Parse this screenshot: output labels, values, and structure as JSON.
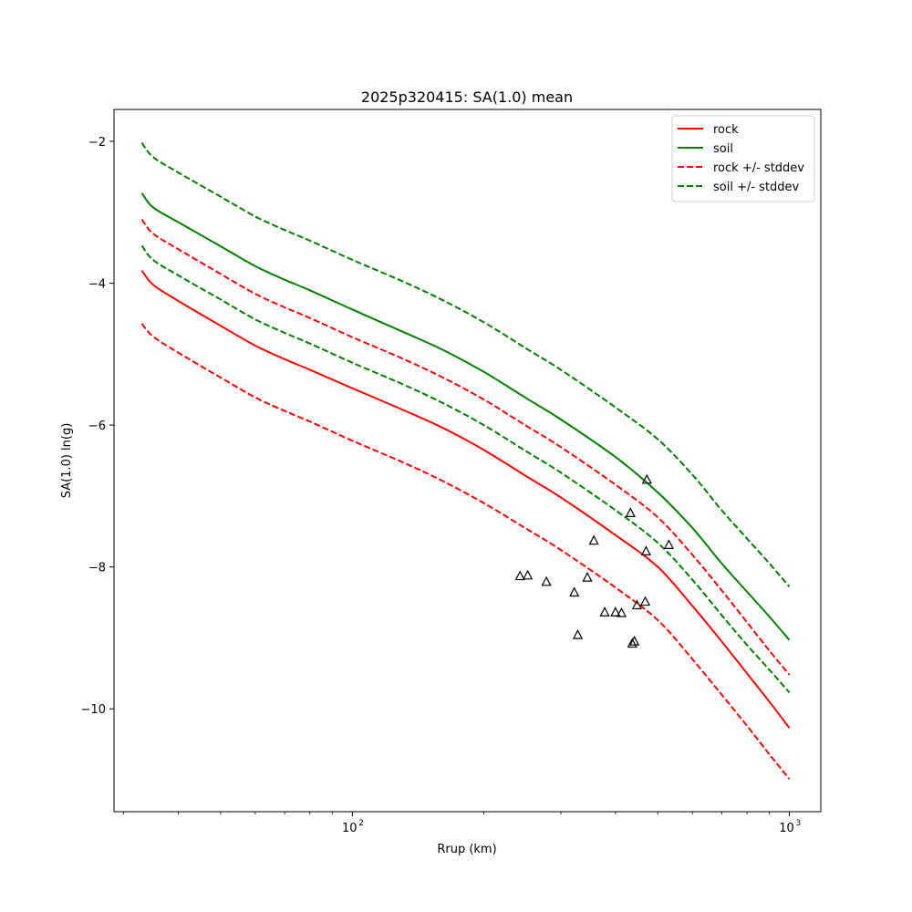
{
  "chart_data": {
    "type": "line",
    "title": "2025p320415: SA(1.0) mean",
    "xlabel": "Rrup (km)",
    "ylabel": "SA(1.0) ln(g)",
    "xscale": "log",
    "xlim": [
      28.5,
      1180
    ],
    "ylim": [
      -11.45,
      -1.55
    ],
    "x_ticks": [
      {
        "value": 100,
        "base": "10",
        "exp": "2"
      },
      {
        "value": 1000,
        "base": "10",
        "exp": "3"
      }
    ],
    "y_ticks": [
      {
        "value": -2,
        "label": "−2"
      },
      {
        "value": -4,
        "label": "−4"
      },
      {
        "value": -6,
        "label": "−6"
      },
      {
        "value": -8,
        "label": "−8"
      },
      {
        "value": -10,
        "label": "−10"
      }
    ],
    "legend_position": "upper-right",
    "legend": [
      {
        "label": "rock",
        "color": "#ff0000",
        "style": "solid"
      },
      {
        "label": "soil",
        "color": "#008000",
        "style": "solid"
      },
      {
        "label": "rock +/- stddev",
        "color": "#ff0000",
        "style": "dashed"
      },
      {
        "label": "soil +/- stddev",
        "color": "#008000",
        "style": "dashed"
      }
    ],
    "series": [
      {
        "key": "rock",
        "color": "#ff0000",
        "style": "solid",
        "x": [
          33,
          35,
          40,
          50,
          60,
          70,
          80,
          100,
          130,
          160,
          200,
          250,
          300,
          400,
          500,
          600,
          700,
          800,
          900,
          1000
        ],
        "y": [
          -3.82,
          -4.02,
          -4.25,
          -4.6,
          -4.88,
          -5.07,
          -5.22,
          -5.48,
          -5.78,
          -6.03,
          -6.35,
          -6.72,
          -7.02,
          -7.55,
          -8.0,
          -8.55,
          -9.05,
          -9.5,
          -9.9,
          -10.27
        ]
      },
      {
        "key": "soil",
        "color": "#008000",
        "style": "solid",
        "x": [
          33,
          35,
          40,
          50,
          60,
          70,
          80,
          100,
          130,
          160,
          200,
          250,
          300,
          400,
          500,
          600,
          700,
          800,
          900,
          1000
        ],
        "y": [
          -2.73,
          -2.93,
          -3.14,
          -3.48,
          -3.76,
          -3.95,
          -4.1,
          -4.37,
          -4.68,
          -4.93,
          -5.25,
          -5.62,
          -5.92,
          -6.45,
          -6.95,
          -7.45,
          -7.95,
          -8.35,
          -8.7,
          -9.03
        ]
      },
      {
        "key": "rock_plus",
        "color": "#ff0000",
        "style": "dashed",
        "x": [
          33,
          35,
          40,
          50,
          60,
          70,
          80,
          100,
          130,
          160,
          200,
          250,
          300,
          400,
          500,
          600,
          700,
          800,
          900,
          1000
        ],
        "y": [
          -3.1,
          -3.3,
          -3.52,
          -3.87,
          -4.15,
          -4.34,
          -4.49,
          -4.76,
          -5.06,
          -5.32,
          -5.64,
          -6.01,
          -6.31,
          -6.84,
          -7.3,
          -7.83,
          -8.33,
          -8.78,
          -9.18,
          -9.52
        ]
      },
      {
        "key": "rock_minus",
        "color": "#ff0000",
        "style": "dashed",
        "x": [
          33,
          35,
          40,
          50,
          60,
          70,
          80,
          100,
          130,
          160,
          200,
          250,
          300,
          400,
          500,
          600,
          700,
          800,
          900,
          1000
        ],
        "y": [
          -4.57,
          -4.75,
          -4.98,
          -5.33,
          -5.61,
          -5.8,
          -5.95,
          -6.22,
          -6.52,
          -6.78,
          -7.1,
          -7.46,
          -7.76,
          -8.29,
          -8.75,
          -9.3,
          -9.8,
          -10.24,
          -10.64,
          -10.99
        ]
      },
      {
        "key": "soil_plus",
        "color": "#008000",
        "style": "dashed",
        "x": [
          33,
          35,
          40,
          50,
          60,
          70,
          80,
          100,
          130,
          160,
          200,
          250,
          300,
          400,
          500,
          600,
          700,
          800,
          900,
          1000
        ],
        "y": [
          -2.02,
          -2.22,
          -2.44,
          -2.78,
          -3.06,
          -3.25,
          -3.4,
          -3.67,
          -3.97,
          -4.23,
          -4.55,
          -4.92,
          -5.22,
          -5.75,
          -6.2,
          -6.7,
          -7.2,
          -7.6,
          -7.95,
          -8.28
        ]
      },
      {
        "key": "soil_minus",
        "color": "#008000",
        "style": "dashed",
        "x": [
          33,
          35,
          40,
          50,
          60,
          70,
          80,
          100,
          130,
          160,
          200,
          250,
          300,
          400,
          500,
          600,
          700,
          800,
          900,
          1000
        ],
        "y": [
          -3.47,
          -3.67,
          -3.89,
          -4.23,
          -4.51,
          -4.7,
          -4.85,
          -5.12,
          -5.42,
          -5.68,
          -6.0,
          -6.37,
          -6.67,
          -7.2,
          -7.66,
          -8.18,
          -8.68,
          -9.1,
          -9.45,
          -9.77
        ]
      }
    ],
    "observations": {
      "marker": "triangle",
      "points": [
        {
          "x": 242,
          "y": -8.13
        },
        {
          "x": 252,
          "y": -8.12
        },
        {
          "x": 278,
          "y": -8.21
        },
        {
          "x": 322,
          "y": -8.36
        },
        {
          "x": 328,
          "y": -8.96
        },
        {
          "x": 345,
          "y": -8.15
        },
        {
          "x": 357,
          "y": -7.63
        },
        {
          "x": 378,
          "y": -8.64
        },
        {
          "x": 400,
          "y": -8.64
        },
        {
          "x": 413,
          "y": -8.65
        },
        {
          "x": 433,
          "y": -7.24
        },
        {
          "x": 437,
          "y": -9.08
        },
        {
          "x": 442,
          "y": -9.05
        },
        {
          "x": 448,
          "y": -8.54
        },
        {
          "x": 468,
          "y": -8.49
        },
        {
          "x": 470,
          "y": -7.78
        },
        {
          "x": 472,
          "y": -6.77
        },
        {
          "x": 530,
          "y": -7.69
        }
      ]
    }
  }
}
